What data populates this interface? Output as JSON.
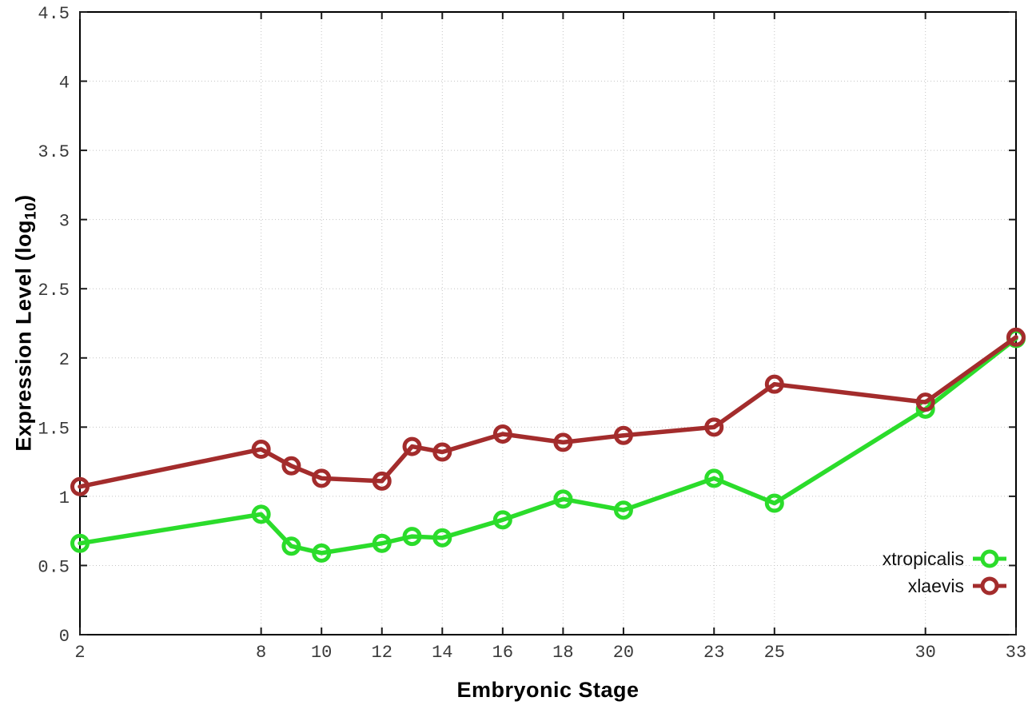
{
  "chart_data": {
    "type": "line",
    "title": "",
    "xlabel": "Embryonic Stage",
    "ylabel": "Expression Level (log10)",
    "ylabel_parts": {
      "prefix": "Expression Level (log",
      "sub": "10",
      "suffix": ")"
    },
    "x": [
      2,
      8,
      9,
      10,
      12,
      13,
      14,
      16,
      18,
      20,
      23,
      25,
      30,
      33
    ],
    "series": [
      {
        "name": "xtropicalis",
        "color": "#2bdc2b",
        "marker": "open-circle",
        "values": [
          0.66,
          0.87,
          0.64,
          0.59,
          0.66,
          0.71,
          0.7,
          0.83,
          0.98,
          0.9,
          1.13,
          0.95,
          1.63,
          2.14
        ]
      },
      {
        "name": "xlaevis",
        "color": "#a32c2c",
        "marker": "open-circle",
        "values": [
          1.07,
          1.34,
          1.22,
          1.13,
          1.11,
          1.36,
          1.32,
          1.45,
          1.39,
          1.44,
          1.5,
          1.81,
          1.68,
          2.15
        ]
      }
    ],
    "xticks": [
      2,
      8,
      10,
      12,
      14,
      16,
      18,
      20,
      23,
      25,
      30,
      33
    ],
    "yticks": [
      0,
      0.5,
      1,
      1.5,
      2,
      2.5,
      3,
      3.5,
      4,
      4.5
    ],
    "xlim": [
      2,
      33
    ],
    "ylim": [
      0,
      4.5
    ],
    "grid": true,
    "legend_position": "bottom-right"
  },
  "colors": {
    "background": "#ffffff",
    "border": "#000000",
    "grid": "#c4c4c4",
    "tick": "#1a1a1a",
    "tick_label": "#3a3a3a",
    "series_green": "#2bdc2b",
    "series_red": "#a32c2c"
  }
}
